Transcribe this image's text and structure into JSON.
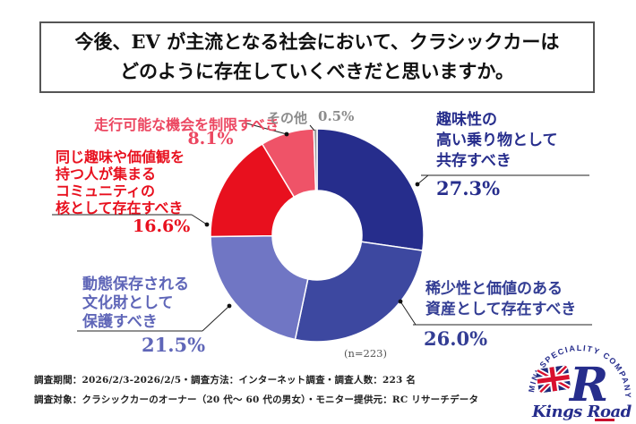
{
  "title": {
    "line1": "今後、EV が主流となる社会において、クラシックカーは",
    "line2": "どのように存在していくべきだと思いますか。"
  },
  "chart_data": {
    "type": "pie",
    "donut": true,
    "title": "今後、EV が主流となる社会において、クラシックカーはどのように存在していくべきだと思いますか。",
    "n_label": "(n=223)",
    "sample_size": 223,
    "start_angle_deg": -90,
    "direction": "clockwise",
    "legend_position": "around",
    "segments": [
      {
        "label": "趣味性の高い乗り物として共存すべき",
        "value": 27.3,
        "color": "#262D8C"
      },
      {
        "label": "稀少性と価値のある資産として存在すべき",
        "value": 26.0,
        "color": "#3D48A0"
      },
      {
        "label": "動態保存される文化財として保護すべき",
        "value": 21.5,
        "color": "#7076C4"
      },
      {
        "label": "同じ趣味や価値観を持つ人が集まるコミュニティの核として存在すべき",
        "value": 16.6,
        "color": "#E8101E"
      },
      {
        "label": "走行可能な機会を制限すべき",
        "value": 8.1,
        "color": "#EF5368"
      },
      {
        "label": "その他",
        "value": 0.5,
        "color": "#9A9A9A"
      }
    ]
  },
  "callouts": {
    "coexist": {
      "line1": "趣味性の",
      "line2": "高い乗り物として",
      "line3": "共存すべき",
      "pct": "27.3%",
      "color": "#262D8C"
    },
    "asset": {
      "line1": "稀少性と価値のある",
      "line2": "資産として存在すべき",
      "pct": "26.0%",
      "color": "#333D94"
    },
    "preserve": {
      "line1": "動態保存される",
      "line2": "文化財として",
      "line3": "保護すべき",
      "pct": "21.5%",
      "color": "#5F66B8"
    },
    "community": {
      "line1": "同じ趣味や価値観を",
      "line2": "持つ人が集まる",
      "line3": "コミュニティの",
      "line4": "核として存在すべき",
      "pct": "16.6%",
      "color": "#E8101E"
    },
    "restrict": {
      "label": "走行可能な機会を制限すべき",
      "pct": "8.1%",
      "color": "#EC4761"
    },
    "other": {
      "label": "その他",
      "pct": "0.5%",
      "color": "#8C8C8C"
    }
  },
  "footnote": {
    "line1": "調査期間：2026/2/3-2026/2/5・調査方法：インターネット調査・調査人数：223 名",
    "line2": "調査対象：クラシックカーのオーナー（20 代～ 60 代の男女）・モニター提供元：RC リサーチデータ"
  },
  "logo": {
    "arc_text": "MINI SPECIALITY COMPANY",
    "brand": "Kings Road"
  }
}
